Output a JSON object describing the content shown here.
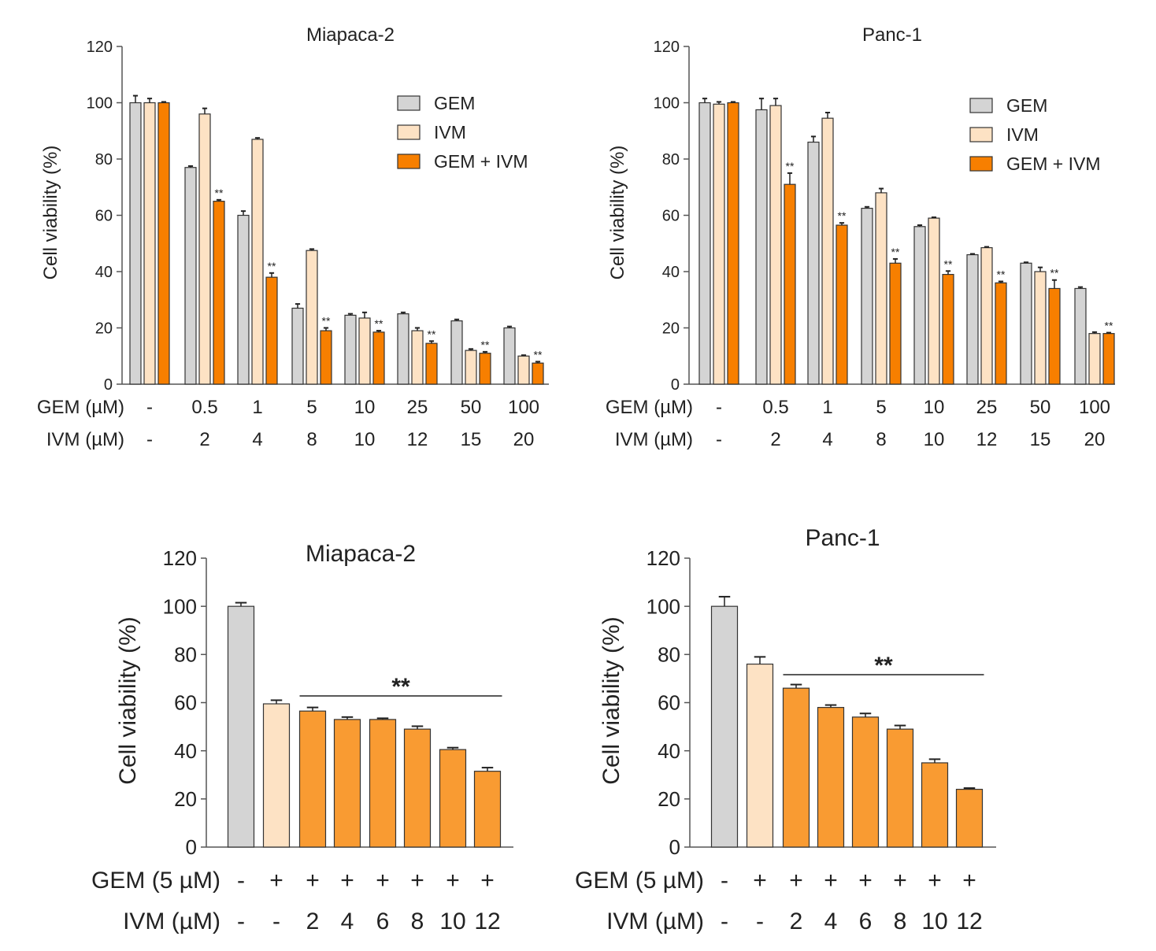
{
  "chart_data": [
    {
      "type": "bar",
      "title": "Miapaca-2",
      "ylabel": "Cell viability (%)",
      "ylim": [
        0,
        120
      ],
      "yticks": [
        "0",
        "20",
        "40",
        "60",
        "80",
        "100",
        "120"
      ],
      "row_labels": [
        "GEM (µM)",
        "IVM (µM)"
      ],
      "gem_ticks": [
        "-",
        "0.5",
        "1",
        "5",
        "10",
        "25",
        "50",
        "100"
      ],
      "ivm_ticks": [
        "-",
        "2",
        "4",
        "8",
        "10",
        "12",
        "15",
        "20"
      ],
      "legend": [
        "GEM",
        "IVM",
        "GEM + IVM"
      ],
      "legend_position": "top-right",
      "colors": [
        "#d4d4d4",
        "#fde2c4",
        "#f77f00"
      ],
      "series": [
        {
          "name": "GEM",
          "values": [
            100,
            77,
            60,
            27,
            24.5,
            25,
            22.5,
            20
          ],
          "errors": [
            2.5,
            0.5,
            1.5,
            1.5,
            0.5,
            0.5,
            0.5,
            0.5
          ]
        },
        {
          "name": "IVM",
          "values": [
            100,
            96,
            87,
            47.5,
            23.5,
            19,
            12,
            10
          ],
          "errors": [
            1.5,
            2,
            0.5,
            0.5,
            2,
            1,
            0.5,
            0.3
          ]
        },
        {
          "name": "GEM + IVM",
          "values": [
            100,
            65,
            38,
            19,
            18.5,
            14.5,
            11,
            7.5
          ],
          "errors": [
            0.3,
            0.5,
            1.5,
            1,
            0.5,
            0.8,
            0.5,
            0.5
          ]
        }
      ],
      "significance": [
        "",
        "**",
        "**",
        "**",
        "**",
        "**",
        "**",
        "**"
      ]
    },
    {
      "type": "bar",
      "title": "Panc-1",
      "ylabel": "Cell viability (%)",
      "ylim": [
        0,
        120
      ],
      "yticks": [
        "0",
        "20",
        "40",
        "60",
        "80",
        "100",
        "120"
      ],
      "row_labels": [
        "GEM (µM)",
        "IVM (µM)"
      ],
      "gem_ticks": [
        "-",
        "0.5",
        "1",
        "5",
        "10",
        "25",
        "50",
        "100"
      ],
      "ivm_ticks": [
        "-",
        "2",
        "4",
        "8",
        "10",
        "12",
        "15",
        "20"
      ],
      "legend": [
        "GEM",
        "IVM",
        "GEM + IVM"
      ],
      "legend_position": "top-right",
      "colors": [
        "#d4d4d4",
        "#fde2c4",
        "#f77f00"
      ],
      "series": [
        {
          "name": "GEM",
          "values": [
            100,
            97.5,
            86,
            62.5,
            56,
            46,
            43,
            34
          ],
          "errors": [
            1.5,
            4,
            2,
            0.5,
            0.5,
            0.3,
            0.3,
            0.5
          ]
        },
        {
          "name": "IVM",
          "values": [
            99.5,
            99,
            94.5,
            68,
            59,
            48.5,
            40,
            18
          ],
          "errors": [
            0.8,
            2.5,
            2,
            1.5,
            0.3,
            0.3,
            1.5,
            0.5
          ]
        },
        {
          "name": "GEM + IVM",
          "values": [
            100,
            71,
            56.5,
            43,
            39,
            36,
            34,
            18
          ],
          "errors": [
            0.3,
            4,
            0.8,
            1.5,
            1.2,
            0.5,
            3,
            0.3
          ]
        }
      ],
      "significance": [
        "",
        "**",
        "**",
        "**",
        "**",
        "**",
        "**",
        "**"
      ]
    },
    {
      "type": "bar",
      "title": "Miapaca-2",
      "ylabel": "Cell viability (%)",
      "ylim": [
        0,
        120
      ],
      "yticks": [
        "0",
        "20",
        "40",
        "60",
        "80",
        "100",
        "120"
      ],
      "row_labels": [
        "GEM (5 µM)",
        "IVM (µM)"
      ],
      "gem_ticks": [
        "-",
        "+",
        "+",
        "+",
        "+",
        "+",
        "+",
        "+"
      ],
      "ivm_ticks": [
        "-",
        "-",
        "2",
        "4",
        "6",
        "8",
        "10",
        "12"
      ],
      "colors": [
        "#d4d4d4",
        "#fde2c4",
        "#f99b32",
        "#f99b32",
        "#f99b32",
        "#f99b32",
        "#f99b32",
        "#f99b32"
      ],
      "values": [
        100,
        59.5,
        56.5,
        53,
        53,
        49,
        40.5,
        31.5
      ],
      "errors": [
        1.5,
        1.5,
        1.5,
        1,
        0.5,
        1.2,
        0.8,
        1.5
      ],
      "significance_label": "**",
      "significance_span": [
        3,
        8
      ]
    },
    {
      "type": "bar",
      "title": "Panc-1",
      "ylabel": "Cell viability (%)",
      "ylim": [
        0,
        120
      ],
      "yticks": [
        "0",
        "20",
        "40",
        "60",
        "80",
        "100",
        "120"
      ],
      "row_labels": [
        "GEM (5 µM)",
        "IVM (µM)"
      ],
      "gem_ticks": [
        "-",
        "+",
        "+",
        "+",
        "+",
        "+",
        "+",
        "+"
      ],
      "ivm_ticks": [
        "-",
        "-",
        "2",
        "4",
        "6",
        "8",
        "10",
        "12"
      ],
      "colors": [
        "#d4d4d4",
        "#fde2c4",
        "#f99b32",
        "#f99b32",
        "#f99b32",
        "#f99b32",
        "#f99b32",
        "#f99b32"
      ],
      "values": [
        100,
        76,
        66,
        58,
        54,
        49,
        35,
        24
      ],
      "errors": [
        4,
        3,
        1.5,
        1,
        1.5,
        1.5,
        1.5,
        0.5
      ],
      "significance_label": "**",
      "significance_span": [
        3,
        8
      ]
    }
  ]
}
